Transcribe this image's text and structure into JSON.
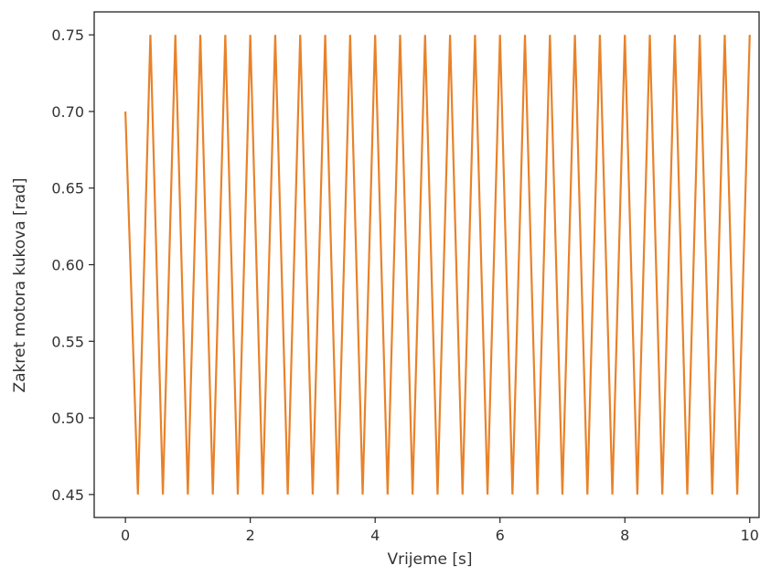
{
  "chart_data": {
    "type": "line",
    "xlabel": "Vrijeme [s]",
    "ylabel": "Zakret motora kukova  [rad]",
    "xlim": [
      -0.5,
      10.15
    ],
    "ylim": [
      0.435,
      0.765
    ],
    "xticks": [
      0,
      2,
      4,
      6,
      8,
      10
    ],
    "yticks": [
      0.45,
      0.5,
      0.55,
      0.6,
      0.65,
      0.7,
      0.75
    ],
    "ytick_labels": [
      "0.45",
      "0.50",
      "0.55",
      "0.60",
      "0.65",
      "0.70",
      "0.75"
    ],
    "xtick_labels": [
      "0",
      "2",
      "4",
      "6",
      "8",
      "10"
    ],
    "grid": false,
    "series": [
      {
        "color": "#e8822a",
        "x": [
          0.0,
          0.2,
          0.4,
          0.6,
          0.8,
          1.0,
          1.2,
          1.4,
          1.6,
          1.8,
          2.0,
          2.2,
          2.4,
          2.6,
          2.8,
          3.0,
          3.2,
          3.4,
          3.6,
          3.8,
          4.0,
          4.2,
          4.4,
          4.6,
          4.8,
          5.0,
          5.2,
          5.4,
          5.6,
          5.8,
          6.0,
          6.2,
          6.4,
          6.6,
          6.8,
          7.0,
          7.2,
          7.4,
          7.6,
          7.8,
          8.0,
          8.2,
          8.4,
          8.6,
          8.8,
          9.0,
          9.2,
          9.4,
          9.6,
          9.8,
          10.0
        ],
        "y": [
          0.7,
          0.45,
          0.75,
          0.45,
          0.75,
          0.45,
          0.75,
          0.45,
          0.75,
          0.45,
          0.75,
          0.45,
          0.75,
          0.45,
          0.75,
          0.45,
          0.75,
          0.45,
          0.75,
          0.45,
          0.75,
          0.45,
          0.75,
          0.45,
          0.75,
          0.45,
          0.75,
          0.45,
          0.75,
          0.45,
          0.75,
          0.45,
          0.75,
          0.45,
          0.75,
          0.45,
          0.75,
          0.45,
          0.75,
          0.45,
          0.75,
          0.45,
          0.75,
          0.45,
          0.75,
          0.45,
          0.75,
          0.45,
          0.75,
          0.45,
          0.75
        ]
      }
    ]
  }
}
